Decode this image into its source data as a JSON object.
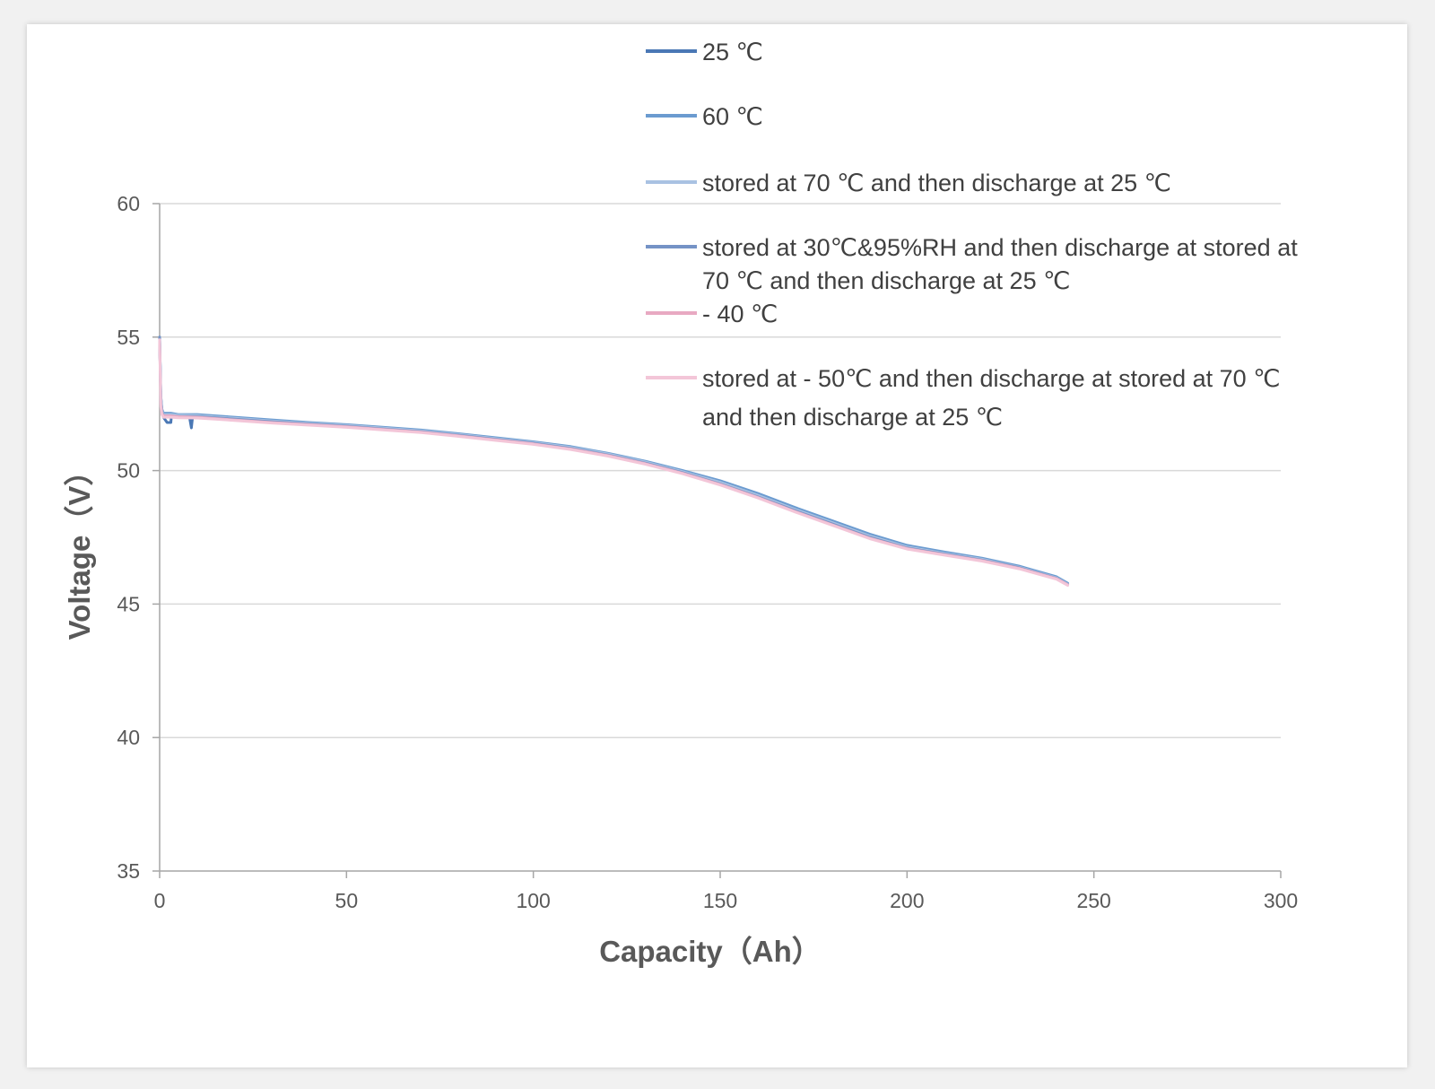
{
  "chart_data": {
    "type": "line",
    "title": "",
    "xlabel": "Capacity（Ah）",
    "ylabel": "Voltage（V）",
    "xlim": [
      0,
      300
    ],
    "ylim": [
      35,
      60
    ],
    "xticks": [
      0,
      50,
      100,
      150,
      200,
      250,
      300
    ],
    "yticks": [
      35,
      40,
      45,
      50,
      55,
      60
    ],
    "grid": "horizontal",
    "legend_position": "top-right",
    "series": [
      {
        "name": "25 ℃",
        "color": "#4a78b5",
        "x": [
          0,
          0.3,
          0.6,
          1,
          2,
          3,
          3.2,
          5,
          8,
          8.5,
          8.8,
          9.5,
          12,
          20,
          30,
          40,
          50,
          60,
          70,
          80,
          90,
          100,
          110,
          120,
          130,
          140,
          150,
          160,
          170,
          180,
          190,
          200,
          210,
          220,
          230,
          240,
          243
        ],
        "y": [
          54.9,
          52.8,
          52.2,
          52.0,
          51.8,
          51.8,
          52.1,
          52.05,
          52.0,
          51.6,
          52.0,
          52.05,
          52.0,
          51.95,
          51.85,
          51.78,
          51.7,
          51.6,
          51.5,
          51.35,
          51.2,
          51.05,
          50.85,
          50.6,
          50.3,
          49.95,
          49.55,
          49.05,
          48.5,
          48.0,
          47.5,
          47.1,
          46.9,
          46.7,
          46.4,
          46.0,
          45.75
        ]
      },
      {
        "name": "60 ℃",
        "color": "#6b9bd0",
        "x": [
          0,
          0.3,
          0.6,
          1,
          2,
          3,
          5,
          10,
          20,
          30,
          40,
          50,
          60,
          70,
          80,
          90,
          100,
          110,
          120,
          130,
          140,
          150,
          160,
          170,
          180,
          190,
          200,
          210,
          220,
          230,
          240,
          243
        ],
        "y": [
          55.0,
          52.8,
          52.3,
          52.15,
          52.15,
          52.15,
          52.1,
          52.1,
          52.0,
          51.9,
          51.8,
          51.72,
          51.62,
          51.52,
          51.38,
          51.23,
          51.08,
          50.9,
          50.65,
          50.35,
          50.0,
          49.62,
          49.15,
          48.62,
          48.12,
          47.62,
          47.2,
          46.95,
          46.72,
          46.42,
          46.02,
          45.78
        ]
      },
      {
        "name": "stored at 70 ℃ and then discharge at 25 ℃",
        "color": "#a9c2e2",
        "x": [
          0,
          0.3,
          0.6,
          1,
          2,
          3,
          5,
          10,
          20,
          30,
          40,
          50,
          60,
          70,
          80,
          90,
          100,
          110,
          120,
          130,
          140,
          150,
          160,
          170,
          180,
          190,
          200,
          210,
          220,
          230,
          240,
          243
        ],
        "y": [
          55.0,
          52.7,
          52.25,
          52.1,
          52.1,
          52.1,
          52.08,
          52.06,
          51.96,
          51.86,
          51.77,
          51.69,
          51.59,
          51.49,
          51.35,
          51.2,
          51.05,
          50.87,
          50.62,
          50.32,
          49.96,
          49.56,
          49.08,
          48.55,
          48.05,
          47.55,
          47.14,
          46.9,
          46.68,
          46.38,
          45.98,
          45.74
        ]
      },
      {
        "name": "stored at 30℃&95%RH and then discharge at stored at 70 ℃ and then discharge at 25 ℃",
        "color": "#7593c6",
        "x": [
          0,
          0.3,
          0.6,
          1,
          2,
          3,
          5,
          10,
          20,
          30,
          40,
          50,
          60,
          70,
          80,
          90,
          100,
          110,
          120,
          130,
          140,
          150,
          160,
          170,
          180,
          190,
          200,
          210,
          220,
          230,
          240,
          243
        ],
        "y": [
          55.0,
          52.6,
          52.2,
          52.05,
          52.05,
          52.05,
          52.03,
          52.02,
          51.93,
          51.83,
          51.74,
          51.66,
          51.56,
          51.46,
          51.32,
          51.17,
          51.02,
          50.83,
          50.58,
          50.28,
          49.92,
          49.5,
          49.02,
          48.5,
          48.0,
          47.5,
          47.1,
          46.87,
          46.65,
          46.36,
          45.96,
          45.72
        ]
      },
      {
        "name": "- 40 ℃",
        "color": "#e8a9c2",
        "x": [
          0,
          0.3,
          0.6,
          1,
          2,
          3,
          5,
          10,
          20,
          30,
          40,
          50,
          60,
          70,
          80,
          90,
          100,
          110,
          120,
          130,
          140,
          150,
          160,
          170,
          180,
          190,
          200,
          210,
          220,
          230,
          240,
          243
        ],
        "y": [
          54.8,
          52.5,
          52.15,
          52.05,
          52.05,
          52.05,
          52.02,
          52.0,
          51.9,
          51.8,
          51.72,
          51.64,
          51.54,
          51.44,
          51.3,
          51.15,
          51.0,
          50.81,
          50.56,
          50.26,
          49.9,
          49.48,
          49.0,
          48.47,
          47.97,
          47.47,
          47.08,
          46.85,
          46.63,
          46.34,
          45.95,
          45.72
        ]
      },
      {
        "name": "stored at - 50℃ and then discharge at stored at 70 ℃ and then discharge at 25 ℃",
        "color": "#f3c6d8",
        "x": [
          0,
          0.3,
          0.6,
          1,
          2,
          3,
          5,
          10,
          20,
          30,
          40,
          50,
          60,
          70,
          80,
          90,
          100,
          110,
          120,
          130,
          140,
          150,
          160,
          170,
          180,
          190,
          200,
          210,
          220,
          230,
          240,
          243
        ],
        "y": [
          54.9,
          52.4,
          52.1,
          52.0,
          52.0,
          52.0,
          51.98,
          51.97,
          51.88,
          51.78,
          51.7,
          51.62,
          51.52,
          51.42,
          51.28,
          51.13,
          50.98,
          50.79,
          50.54,
          50.24,
          49.88,
          49.46,
          48.98,
          48.45,
          47.95,
          47.45,
          47.06,
          46.83,
          46.61,
          46.32,
          45.93,
          45.7
        ]
      }
    ],
    "legend_lines": [
      [
        "25 ℃"
      ],
      [
        "60 ℃"
      ],
      [
        "stored at 70 ℃ and then discharge at 25 ℃"
      ],
      [
        "stored at 30℃&95%RH and then discharge at stored at",
        "70 ℃ and then discharge at 25 ℃"
      ],
      [
        "- 40 ℃"
      ],
      [
        "stored at  ‐ 50℃ and then discharge at stored at 70 ℃",
        "and then discharge at 25 ℃"
      ]
    ]
  }
}
